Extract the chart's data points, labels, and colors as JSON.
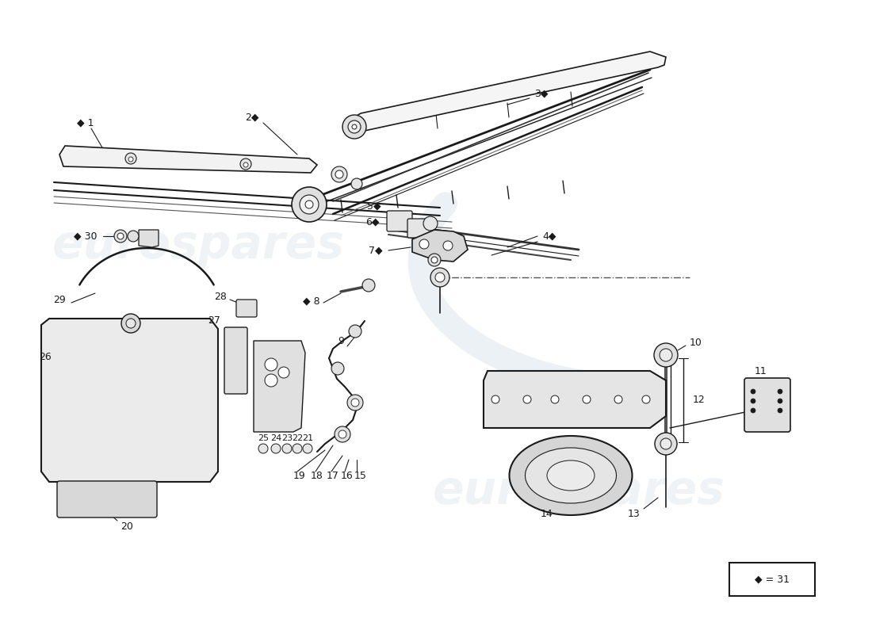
{
  "bg_color": "#ffffff",
  "line_color": "#1a1a1a",
  "wm_color": "#b8ccd8",
  "wm_alpha": 0.22,
  "figsize": [
    11.0,
    8.0
  ],
  "dpi": 100
}
